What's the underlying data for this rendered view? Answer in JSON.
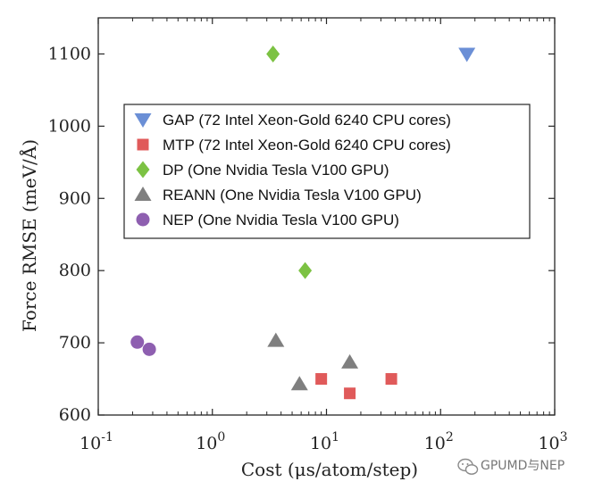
{
  "chart_data": {
    "type": "scatter",
    "xlabel": "Cost (μs/atom/step)",
    "ylabel": "Force RMSE (meV/Å)",
    "xscale": "log",
    "xlim": [
      0.1,
      1000
    ],
    "ylim": [
      600,
      1150
    ],
    "x_ticks": [
      0.1,
      1,
      10,
      100,
      1000
    ],
    "x_tick_labels": [
      {
        "base": "10",
        "exp": "-1"
      },
      {
        "base": "10",
        "exp": "0"
      },
      {
        "base": "10",
        "exp": "1"
      },
      {
        "base": "10",
        "exp": "2"
      },
      {
        "base": "10",
        "exp": "3"
      }
    ],
    "y_ticks": [
      600,
      700,
      800,
      900,
      1000,
      1100
    ],
    "y_tick_labels": [
      "600",
      "700",
      "800",
      "900",
      "1000",
      "1100"
    ],
    "grid": false,
    "legend_position": "upper-center",
    "series": [
      {
        "name": "GAP (72 Intel Xeon-Gold 6240 CPU cores)",
        "marker": "triangle-down",
        "color": "#6b8fd6",
        "points": [
          {
            "x": 170,
            "y": 1100
          }
        ]
      },
      {
        "name": "MTP (72 Intel Xeon-Gold 6240 CPU cores)",
        "marker": "square",
        "color": "#e05a5a",
        "points": [
          {
            "x": 9,
            "y": 650
          },
          {
            "x": 16,
            "y": 630
          },
          {
            "x": 37,
            "y": 650
          }
        ]
      },
      {
        "name": "DP (One Nvidia Tesla V100 GPU)",
        "marker": "diamond",
        "color": "#7cc243",
        "points": [
          {
            "x": 3.4,
            "y": 1100
          },
          {
            "x": 6.5,
            "y": 800
          }
        ]
      },
      {
        "name": "REANN (One Nvidia Tesla V100 GPU)",
        "marker": "triangle-up",
        "color": "#7f7f7f",
        "points": [
          {
            "x": 3.6,
            "y": 703
          },
          {
            "x": 5.8,
            "y": 643
          },
          {
            "x": 16,
            "y": 673
          }
        ]
      },
      {
        "name": "NEP (One Nvidia Tesla V100 GPU)",
        "marker": "circle",
        "color": "#8e5fb0",
        "points": [
          {
            "x": 0.22,
            "y": 701
          },
          {
            "x": 0.28,
            "y": 691
          }
        ]
      }
    ]
  },
  "watermark": {
    "icon": "wechat-icon",
    "text": "GPUMD与NEP"
  }
}
